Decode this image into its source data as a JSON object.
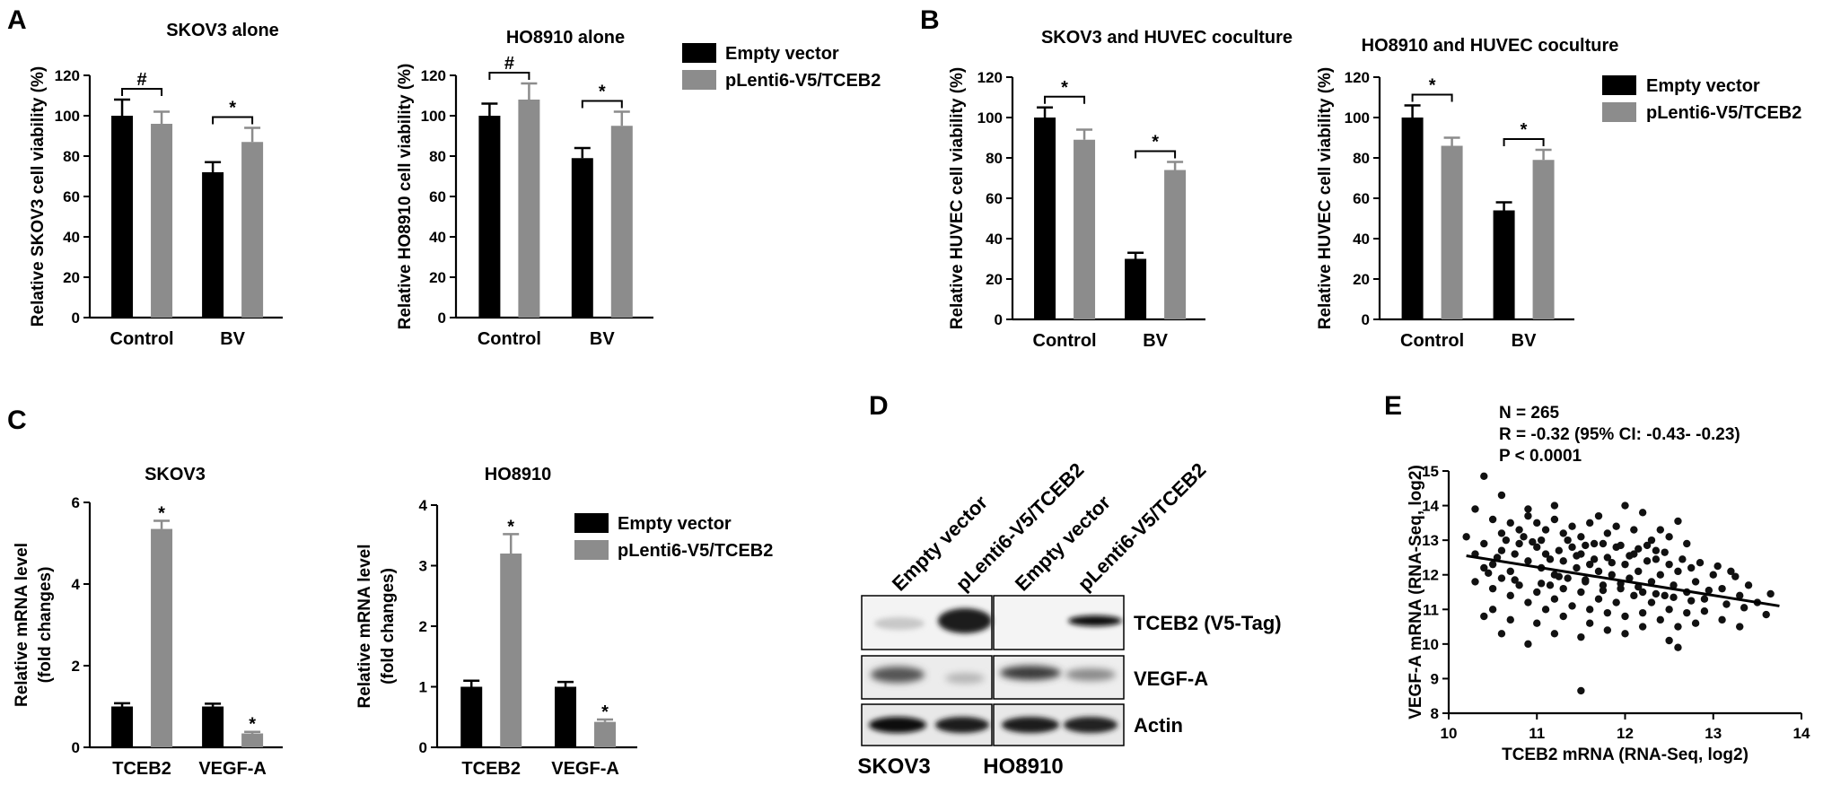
{
  "colors": {
    "empty_vector": "#000000",
    "tceb2": "#8c8c8c",
    "axis": "#000000"
  },
  "panels": {
    "A": "A",
    "B": "B",
    "C": "C",
    "D": "D",
    "E": "E"
  },
  "legends": [
    {
      "empty": "Empty vector",
      "tceb2": "pLenti6-V5/TCEB2"
    },
    {
      "empty": "Empty vector",
      "tceb2": "pLenti6-V5/TCEB2"
    },
    {
      "empty": "Empty vector",
      "tceb2": "pLenti6-V5/TCEB2"
    }
  ],
  "chart_data": [
    {
      "type": "bar",
      "title": "SKOV3 alone",
      "ylabel": "Relative SKOV3 cell viability (%)",
      "categories": [
        "Control",
        "BV"
      ],
      "ylim": [
        0,
        120
      ],
      "yticks": [
        "0",
        "20",
        "40",
        "60",
        "80",
        "100",
        "120"
      ],
      "series": [
        {
          "name": "Empty vector",
          "values": [
            100,
            72
          ],
          "errors": [
            8,
            5
          ]
        },
        {
          "name": "pLenti6-V5/TCEB2",
          "values": [
            96,
            87
          ],
          "errors": [
            6,
            7
          ]
        }
      ],
      "significance": [
        "#",
        "*"
      ]
    },
    {
      "type": "bar",
      "title": "HO8910 alone",
      "ylabel": "Relative HO8910 cell viability (%)",
      "categories": [
        "Control",
        "BV"
      ],
      "ylim": [
        0,
        120
      ],
      "yticks": [
        "0",
        "20",
        "40",
        "60",
        "80",
        "100",
        "120"
      ],
      "series": [
        {
          "name": "Empty vector",
          "values": [
            100,
            79
          ],
          "errors": [
            6,
            5
          ]
        },
        {
          "name": "pLenti6-V5/TCEB2",
          "values": [
            108,
            95
          ],
          "errors": [
            8,
            7
          ]
        }
      ],
      "significance": [
        "#",
        "*"
      ]
    },
    {
      "type": "bar",
      "title": "SKOV3 and HUVEC coculture",
      "ylabel": "Relative HUVEC cell viability (%)",
      "categories": [
        "Control",
        "BV"
      ],
      "ylim": [
        0,
        120
      ],
      "yticks": [
        "0",
        "20",
        "40",
        "60",
        "80",
        "100",
        "120"
      ],
      "series": [
        {
          "name": "Empty vector",
          "values": [
            100,
            30
          ],
          "errors": [
            5,
            3
          ]
        },
        {
          "name": "pLenti6-V5/TCEB2",
          "values": [
            89,
            74
          ],
          "errors": [
            5,
            4
          ]
        }
      ],
      "significance": [
        "*",
        "*"
      ]
    },
    {
      "type": "bar",
      "title": "HO8910 and HUVEC coculture",
      "ylabel": "Relative HUVEC cell viability (%)",
      "categories": [
        "Control",
        "BV"
      ],
      "ylim": [
        0,
        120
      ],
      "yticks": [
        "0",
        "20",
        "40",
        "60",
        "80",
        "100",
        "120"
      ],
      "series": [
        {
          "name": "Empty vector",
          "values": [
            100,
            54
          ],
          "errors": [
            6,
            4
          ]
        },
        {
          "name": "pLenti6-V5/TCEB2",
          "values": [
            86,
            79
          ],
          "errors": [
            4,
            5
          ]
        }
      ],
      "significance": [
        "*",
        "*"
      ]
    },
    {
      "type": "bar",
      "title": "SKOV3",
      "ylabel": "Relative mRNA level",
      "ylabel2": "(fold changes)",
      "categories": [
        "TCEB2",
        "VEGF-A"
      ],
      "ylim": [
        0,
        6
      ],
      "yticks": [
        "0",
        "2",
        "4",
        "6"
      ],
      "series": [
        {
          "name": "Empty vector",
          "values": [
            1.0,
            1.0
          ],
          "errors": [
            0.08,
            0.07
          ]
        },
        {
          "name": "pLenti6-V5/TCEB2",
          "values": [
            5.35,
            0.34
          ],
          "errors": [
            0.2,
            0.04
          ]
        }
      ],
      "significance": [
        "*",
        "*"
      ]
    },
    {
      "type": "bar",
      "title": "HO8910",
      "ylabel": "Relative mRNA level",
      "ylabel2": "(fold changes)",
      "categories": [
        "TCEB2",
        "VEGF-A"
      ],
      "ylim": [
        0,
        4
      ],
      "yticks": [
        "0",
        "1",
        "2",
        "3",
        "4"
      ],
      "series": [
        {
          "name": "Empty vector",
          "values": [
            1.0,
            1.0
          ],
          "errors": [
            0.1,
            0.08
          ]
        },
        {
          "name": "pLenti6-V5/TCEB2",
          "values": [
            3.2,
            0.42
          ],
          "errors": [
            0.32,
            0.04
          ]
        }
      ],
      "significance": [
        "*",
        "*"
      ]
    },
    {
      "type": "scatter",
      "xlabel": "TCEB2 mRNA (RNA-Seq, log2)",
      "ylabel": "VEGF-A mRNA (RNA-Seq, log2)",
      "xlim": [
        10,
        14
      ],
      "ylim": [
        8,
        15
      ],
      "xticks": [
        "10",
        "11",
        "12",
        "13",
        "14"
      ],
      "yticks": [
        "8",
        "9",
        "10",
        "11",
        "12",
        "13",
        "14",
        "15"
      ],
      "stats": [
        "N = 265",
        "R = -0.32 (95% CI: -0.43- -0.23)",
        "P < 0.0001"
      ],
      "fit_line": {
        "x": [
          10.2,
          13.75
        ],
        "y": [
          12.55,
          11.1
        ]
      },
      "points": [
        [
          10.4,
          14.85
        ],
        [
          10.6,
          14.3
        ],
        [
          10.9,
          13.9
        ],
        [
          11.2,
          14.0
        ],
        [
          11.7,
          13.7
        ],
        [
          12.0,
          14.0
        ],
        [
          12.2,
          13.8
        ],
        [
          12.6,
          13.55
        ],
        [
          10.3,
          13.9
        ],
        [
          10.5,
          13.6
        ],
        [
          10.6,
          13.2
        ],
        [
          10.7,
          13.5
        ],
        [
          10.8,
          13.3
        ],
        [
          10.9,
          13.7
        ],
        [
          11.0,
          13.5
        ],
        [
          11.1,
          13.3
        ],
        [
          11.2,
          13.6
        ],
        [
          11.3,
          13.2
        ],
        [
          11.4,
          13.4
        ],
        [
          11.5,
          13.1
        ],
        [
          11.6,
          13.5
        ],
        [
          11.8,
          13.2
        ],
        [
          11.9,
          13.4
        ],
        [
          12.1,
          13.3
        ],
        [
          12.3,
          13.0
        ],
        [
          12.4,
          13.3
        ],
        [
          12.5,
          13.1
        ],
        [
          12.7,
          12.9
        ],
        [
          10.2,
          13.1
        ],
        [
          10.3,
          12.6
        ],
        [
          10.4,
          12.9
        ],
        [
          10.5,
          12.3
        ],
        [
          10.6,
          12.7
        ],
        [
          10.7,
          12.1
        ],
        [
          10.8,
          12.9
        ],
        [
          10.9,
          12.4
        ],
        [
          11.0,
          12.8
        ],
        [
          11.05,
          12.2
        ],
        [
          11.1,
          12.6
        ],
        [
          11.2,
          12.0
        ],
        [
          11.25,
          12.7
        ],
        [
          11.3,
          12.4
        ],
        [
          11.35,
          11.9
        ],
        [
          11.4,
          12.8
        ],
        [
          11.45,
          12.2
        ],
        [
          11.5,
          12.6
        ],
        [
          11.55,
          11.8
        ],
        [
          11.6,
          12.3
        ],
        [
          11.65,
          12.9
        ],
        [
          11.7,
          12.1
        ],
        [
          11.75,
          11.7
        ],
        [
          11.8,
          12.5
        ],
        [
          11.85,
          12.0
        ],
        [
          11.9,
          12.8
        ],
        [
          11.95,
          11.6
        ],
        [
          12.0,
          12.3
        ],
        [
          12.05,
          11.9
        ],
        [
          12.1,
          12.6
        ],
        [
          12.15,
          12.1
        ],
        [
          12.2,
          11.5
        ],
        [
          12.25,
          12.4
        ],
        [
          12.3,
          11.8
        ],
        [
          12.35,
          12.7
        ],
        [
          12.4,
          12.0
        ],
        [
          12.45,
          11.4
        ],
        [
          12.5,
          12.3
        ],
        [
          12.55,
          11.7
        ],
        [
          12.6,
          12.1
        ],
        [
          12.7,
          11.5
        ],
        [
          12.75,
          12.2
        ],
        [
          12.8,
          11.8
        ],
        [
          12.9,
          11.3
        ],
        [
          13.0,
          12.0
        ],
        [
          13.1,
          11.6
        ],
        [
          13.2,
          12.1
        ],
        [
          13.3,
          11.4
        ],
        [
          13.4,
          11.7
        ],
        [
          13.5,
          11.2
        ],
        [
          13.65,
          11.45
        ],
        [
          10.3,
          11.8
        ],
        [
          10.4,
          12.2
        ],
        [
          10.5,
          11.6
        ],
        [
          10.6,
          11.9
        ],
        [
          10.7,
          11.4
        ],
        [
          10.8,
          11.7
        ],
        [
          10.9,
          11.2
        ],
        [
          11.0,
          11.5
        ],
        [
          11.1,
          11.0
        ],
        [
          11.15,
          11.7
        ],
        [
          11.2,
          11.3
        ],
        [
          11.3,
          11.6
        ],
        [
          11.4,
          11.1
        ],
        [
          11.5,
          11.5
        ],
        [
          11.6,
          11.0
        ],
        [
          11.7,
          11.3
        ],
        [
          11.8,
          10.9
        ],
        [
          11.9,
          11.2
        ],
        [
          12.0,
          10.8
        ],
        [
          12.1,
          11.4
        ],
        [
          12.2,
          10.9
        ],
        [
          12.3,
          11.2
        ],
        [
          12.4,
          10.7
        ],
        [
          12.5,
          11.0
        ],
        [
          12.6,
          10.5
        ],
        [
          12.7,
          10.9
        ],
        [
          12.8,
          10.6
        ],
        [
          12.9,
          10.95
        ],
        [
          13.1,
          10.7
        ],
        [
          13.3,
          10.5
        ],
        [
          13.6,
          10.85
        ],
        [
          10.4,
          10.8
        ],
        [
          10.5,
          11.0
        ],
        [
          10.6,
          10.3
        ],
        [
          10.7,
          10.7
        ],
        [
          10.9,
          10.0
        ],
        [
          11.0,
          10.6
        ],
        [
          11.2,
          10.3
        ],
        [
          11.3,
          10.8
        ],
        [
          11.5,
          10.2
        ],
        [
          11.6,
          10.6
        ],
        [
          11.8,
          10.4
        ],
        [
          12.0,
          10.3
        ],
        [
          12.2,
          10.5
        ],
        [
          12.5,
          10.1
        ],
        [
          12.6,
          9.9
        ],
        [
          11.5,
          8.65
        ],
        [
          10.55,
          12.5
        ],
        [
          10.75,
          12.6
        ],
        [
          10.95,
          12.95
        ],
        [
          11.15,
          12.45
        ],
        [
          11.45,
          12.55
        ],
        [
          11.65,
          12.45
        ],
        [
          11.85,
          12.35
        ],
        [
          12.05,
          12.55
        ],
        [
          12.25,
          12.85
        ],
        [
          12.45,
          12.65
        ],
        [
          12.65,
          12.45
        ],
        [
          12.85,
          12.35
        ],
        [
          13.05,
          12.25
        ],
        [
          13.25,
          11.95
        ],
        [
          10.65,
          13.0
        ],
        [
          10.85,
          13.1
        ],
        [
          11.05,
          13.0
        ],
        [
          11.35,
          13.0
        ],
        [
          11.55,
          12.85
        ],
        [
          11.75,
          12.9
        ],
        [
          11.95,
          12.85
        ],
        [
          12.15,
          12.75
        ],
        [
          12.35,
          12.45
        ],
        [
          10.45,
          12.05
        ],
        [
          10.75,
          11.85
        ],
        [
          11.05,
          11.75
        ],
        [
          11.25,
          11.95
        ],
        [
          11.55,
          11.85
        ],
        [
          11.75,
          11.55
        ],
        [
          11.95,
          11.75
        ],
        [
          12.15,
          11.65
        ],
        [
          12.35,
          11.45
        ],
        [
          12.55,
          11.35
        ],
        [
          12.75,
          11.25
        ],
        [
          12.95,
          11.55
        ],
        [
          13.15,
          11.15
        ],
        [
          13.35,
          11.05
        ]
      ]
    }
  ],
  "blot": {
    "lanes": [
      "Empty vector",
      "pLenti6-V5/TCEB2",
      "Empty vector",
      "pLenti6-V5/TCEB2"
    ],
    "rows": [
      "TCEB2 (V5-Tag)",
      "VEGF-A",
      "Actin"
    ],
    "cell_lines": [
      "SKOV3",
      "HO8910"
    ]
  }
}
